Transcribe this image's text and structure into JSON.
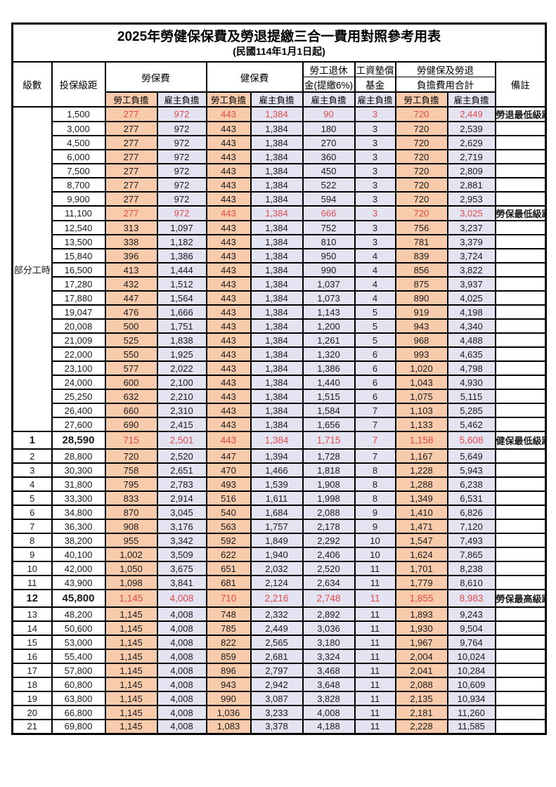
{
  "title": "2025年勞健保保費及勞退提繳三合一費用對照參考用表",
  "subtitle": "(民國114年1月1日起)",
  "header": {
    "level": "級數",
    "bracket": "投保級距",
    "labor_insurance": "勞保費",
    "health_insurance": "健保費",
    "pension_line1": "勞工退休",
    "pension_line2": "金(提繳6%)",
    "wage_fund_line1": "工資墊償",
    "wage_fund_line2": "基金",
    "total_line1": "勞健保及勞退",
    "total_line2": "負擔費用合計",
    "remark": "備註",
    "employee_share": "勞工負擔",
    "employer_share": "雇主負擔"
  },
  "part_time_label": "部分工時",
  "colors": {
    "employee_bg": "#f8cbad",
    "employer_bg": "#e3e3f2",
    "highlight_red": "#e04a4a",
    "border": "#000000"
  },
  "value_columns": [
    "labor-employee",
    "labor-employer",
    "health-employee",
    "health-employer",
    "pension-employer",
    "wagefund-employer",
    "total-employee",
    "total-employer"
  ],
  "rows": [
    {
      "lv": "",
      "br": "1,500",
      "v": [
        "277",
        "972",
        "443",
        "1,384",
        "90",
        "3",
        "720",
        "2,449"
      ],
      "rm": "勞退最低級距",
      "red": true,
      "bold": false,
      "pt": true
    },
    {
      "lv": "",
      "br": "3,000",
      "v": [
        "277",
        "972",
        "443",
        "1,384",
        "180",
        "3",
        "720",
        "2,539"
      ],
      "rm": "",
      "red": false,
      "bold": false,
      "pt": true
    },
    {
      "lv": "",
      "br": "4,500",
      "v": [
        "277",
        "972",
        "443",
        "1,384",
        "270",
        "3",
        "720",
        "2,629"
      ],
      "rm": "",
      "red": false,
      "bold": false,
      "pt": true
    },
    {
      "lv": "",
      "br": "6,000",
      "v": [
        "277",
        "972",
        "443",
        "1,384",
        "360",
        "3",
        "720",
        "2,719"
      ],
      "rm": "",
      "red": false,
      "bold": false,
      "pt": true
    },
    {
      "lv": "",
      "br": "7,500",
      "v": [
        "277",
        "972",
        "443",
        "1,384",
        "450",
        "3",
        "720",
        "2,809"
      ],
      "rm": "",
      "red": false,
      "bold": false,
      "pt": true
    },
    {
      "lv": "",
      "br": "8,700",
      "v": [
        "277",
        "972",
        "443",
        "1,384",
        "522",
        "3",
        "720",
        "2,881"
      ],
      "rm": "",
      "red": false,
      "bold": false,
      "pt": true
    },
    {
      "lv": "",
      "br": "9,900",
      "v": [
        "277",
        "972",
        "443",
        "1,384",
        "594",
        "3",
        "720",
        "2,953"
      ],
      "rm": "",
      "red": false,
      "bold": false,
      "pt": true
    },
    {
      "lv": "",
      "br": "11,100",
      "v": [
        "277",
        "972",
        "443",
        "1,384",
        "666",
        "3",
        "720",
        "3,025"
      ],
      "rm": "勞保最低級距",
      "red": true,
      "bold": false,
      "pt": true
    },
    {
      "lv": "",
      "br": "12,540",
      "v": [
        "313",
        "1,097",
        "443",
        "1,384",
        "752",
        "3",
        "756",
        "3,237"
      ],
      "rm": "",
      "red": false,
      "bold": false,
      "pt": true
    },
    {
      "lv": "",
      "br": "13,500",
      "v": [
        "338",
        "1,182",
        "443",
        "1,384",
        "810",
        "3",
        "781",
        "3,379"
      ],
      "rm": "",
      "red": false,
      "bold": false,
      "pt": true
    },
    {
      "lv": "",
      "br": "15,840",
      "v": [
        "396",
        "1,386",
        "443",
        "1,384",
        "950",
        "4",
        "839",
        "3,724"
      ],
      "rm": "",
      "red": false,
      "bold": false,
      "pt": true
    },
    {
      "lv": "",
      "br": "16,500",
      "v": [
        "413",
        "1,444",
        "443",
        "1,384",
        "990",
        "4",
        "856",
        "3,822"
      ],
      "rm": "",
      "red": false,
      "bold": false,
      "pt": true
    },
    {
      "lv": "",
      "br": "17,280",
      "v": [
        "432",
        "1,512",
        "443",
        "1,384",
        "1,037",
        "4",
        "875",
        "3,937"
      ],
      "rm": "",
      "red": false,
      "bold": false,
      "pt": true
    },
    {
      "lv": "",
      "br": "17,880",
      "v": [
        "447",
        "1,564",
        "443",
        "1,384",
        "1,073",
        "4",
        "890",
        "4,025"
      ],
      "rm": "",
      "red": false,
      "bold": false,
      "pt": true
    },
    {
      "lv": "",
      "br": "19,047",
      "v": [
        "476",
        "1,666",
        "443",
        "1,384",
        "1,143",
        "5",
        "919",
        "4,198"
      ],
      "rm": "",
      "red": false,
      "bold": false,
      "pt": true
    },
    {
      "lv": "",
      "br": "20,008",
      "v": [
        "500",
        "1,751",
        "443",
        "1,384",
        "1,200",
        "5",
        "943",
        "4,340"
      ],
      "rm": "",
      "red": false,
      "bold": false,
      "pt": true
    },
    {
      "lv": "",
      "br": "21,009",
      "v": [
        "525",
        "1,838",
        "443",
        "1,384",
        "1,261",
        "5",
        "968",
        "4,488"
      ],
      "rm": "",
      "red": false,
      "bold": false,
      "pt": true
    },
    {
      "lv": "",
      "br": "22,000",
      "v": [
        "550",
        "1,925",
        "443",
        "1,384",
        "1,320",
        "6",
        "993",
        "4,635"
      ],
      "rm": "",
      "red": false,
      "bold": false,
      "pt": true
    },
    {
      "lv": "",
      "br": "23,100",
      "v": [
        "577",
        "2,022",
        "443",
        "1,384",
        "1,386",
        "6",
        "1,020",
        "4,798"
      ],
      "rm": "",
      "red": false,
      "bold": false,
      "pt": true
    },
    {
      "lv": "",
      "br": "24,000",
      "v": [
        "600",
        "2,100",
        "443",
        "1,384",
        "1,440",
        "6",
        "1,043",
        "4,930"
      ],
      "rm": "",
      "red": false,
      "bold": false,
      "pt": true
    },
    {
      "lv": "",
      "br": "25,250",
      "v": [
        "632",
        "2,210",
        "443",
        "1,384",
        "1,515",
        "6",
        "1,075",
        "5,115"
      ],
      "rm": "",
      "red": false,
      "bold": false,
      "pt": true
    },
    {
      "lv": "",
      "br": "26,400",
      "v": [
        "660",
        "2,310",
        "443",
        "1,384",
        "1,584",
        "7",
        "1,103",
        "5,285"
      ],
      "rm": "",
      "red": false,
      "bold": false,
      "pt": true
    },
    {
      "lv": "",
      "br": "27,600",
      "v": [
        "690",
        "2,415",
        "443",
        "1,384",
        "1,656",
        "7",
        "1,133",
        "5,462"
      ],
      "rm": "",
      "red": false,
      "bold": false,
      "pt": true
    },
    {
      "lv": "1",
      "br": "28,590",
      "v": [
        "715",
        "2,501",
        "443",
        "1,384",
        "1,715",
        "7",
        "1,158",
        "5,608"
      ],
      "rm": "健保最低級距",
      "red": true,
      "bold": true,
      "pt": false
    },
    {
      "lv": "2",
      "br": "28,800",
      "v": [
        "720",
        "2,520",
        "447",
        "1,394",
        "1,728",
        "7",
        "1,167",
        "5,649"
      ],
      "rm": "",
      "red": false,
      "bold": false,
      "pt": false
    },
    {
      "lv": "3",
      "br": "30,300",
      "v": [
        "758",
        "2,651",
        "470",
        "1,466",
        "1,818",
        "8",
        "1,228",
        "5,943"
      ],
      "rm": "",
      "red": false,
      "bold": false,
      "pt": false
    },
    {
      "lv": "4",
      "br": "31,800",
      "v": [
        "795",
        "2,783",
        "493",
        "1,539",
        "1,908",
        "8",
        "1,288",
        "6,238"
      ],
      "rm": "",
      "red": false,
      "bold": false,
      "pt": false
    },
    {
      "lv": "5",
      "br": "33,300",
      "v": [
        "833",
        "2,914",
        "516",
        "1,611",
        "1,998",
        "8",
        "1,349",
        "6,531"
      ],
      "rm": "",
      "red": false,
      "bold": false,
      "pt": false
    },
    {
      "lv": "6",
      "br": "34,800",
      "v": [
        "870",
        "3,045",
        "540",
        "1,684",
        "2,088",
        "9",
        "1,410",
        "6,826"
      ],
      "rm": "",
      "red": false,
      "bold": false,
      "pt": false
    },
    {
      "lv": "7",
      "br": "36,300",
      "v": [
        "908",
        "3,176",
        "563",
        "1,757",
        "2,178",
        "9",
        "1,471",
        "7,120"
      ],
      "rm": "",
      "red": false,
      "bold": false,
      "pt": false
    },
    {
      "lv": "8",
      "br": "38,200",
      "v": [
        "955",
        "3,342",
        "592",
        "1,849",
        "2,292",
        "10",
        "1,547",
        "7,493"
      ],
      "rm": "",
      "red": false,
      "bold": false,
      "pt": false
    },
    {
      "lv": "9",
      "br": "40,100",
      "v": [
        "1,002",
        "3,509",
        "622",
        "1,940",
        "2,406",
        "10",
        "1,624",
        "7,865"
      ],
      "rm": "",
      "red": false,
      "bold": false,
      "pt": false
    },
    {
      "lv": "10",
      "br": "42,000",
      "v": [
        "1,050",
        "3,675",
        "651",
        "2,032",
        "2,520",
        "11",
        "1,701",
        "8,238"
      ],
      "rm": "",
      "red": false,
      "bold": false,
      "pt": false
    },
    {
      "lv": "11",
      "br": "43,900",
      "v": [
        "1,098",
        "3,841",
        "681",
        "2,124",
        "2,634",
        "11",
        "1,779",
        "8,610"
      ],
      "rm": "",
      "red": false,
      "bold": false,
      "pt": false
    },
    {
      "lv": "12",
      "br": "45,800",
      "v": [
        "1,145",
        "4,008",
        "710",
        "2,216",
        "2,748",
        "11",
        "1,855",
        "8,983"
      ],
      "rm": "勞保最高級距",
      "red": true,
      "bold": true,
      "pt": false
    },
    {
      "lv": "13",
      "br": "48,200",
      "v": [
        "1,145",
        "4,008",
        "748",
        "2,332",
        "2,892",
        "11",
        "1,893",
        "9,243"
      ],
      "rm": "",
      "red": false,
      "bold": false,
      "pt": false
    },
    {
      "lv": "14",
      "br": "50,600",
      "v": [
        "1,145",
        "4,008",
        "785",
        "2,449",
        "3,036",
        "11",
        "1,930",
        "9,504"
      ],
      "rm": "",
      "red": false,
      "bold": false,
      "pt": false
    },
    {
      "lv": "15",
      "br": "53,000",
      "v": [
        "1,145",
        "4,008",
        "822",
        "2,565",
        "3,180",
        "11",
        "1,967",
        "9,764"
      ],
      "rm": "",
      "red": false,
      "bold": false,
      "pt": false
    },
    {
      "lv": "16",
      "br": "55,400",
      "v": [
        "1,145",
        "4,008",
        "859",
        "2,681",
        "3,324",
        "11",
        "2,004",
        "10,024"
      ],
      "rm": "",
      "red": false,
      "bold": false,
      "pt": false
    },
    {
      "lv": "17",
      "br": "57,800",
      "v": [
        "1,145",
        "4,008",
        "896",
        "2,797",
        "3,468",
        "11",
        "2,041",
        "10,284"
      ],
      "rm": "",
      "red": false,
      "bold": false,
      "pt": false
    },
    {
      "lv": "18",
      "br": "60,800",
      "v": [
        "1,145",
        "4,008",
        "943",
        "2,942",
        "3,648",
        "11",
        "2,088",
        "10,609"
      ],
      "rm": "",
      "red": false,
      "bold": false,
      "pt": false
    },
    {
      "lv": "19",
      "br": "63,800",
      "v": [
        "1,145",
        "4,008",
        "990",
        "3,087",
        "3,828",
        "11",
        "2,135",
        "10,934"
      ],
      "rm": "",
      "red": false,
      "bold": false,
      "pt": false
    },
    {
      "lv": "20",
      "br": "66,800",
      "v": [
        "1,145",
        "4,008",
        "1,036",
        "3,233",
        "4,008",
        "11",
        "2,181",
        "11,260"
      ],
      "rm": "",
      "red": false,
      "bold": false,
      "pt": false
    },
    {
      "lv": "21",
      "br": "69,800",
      "v": [
        "1,145",
        "4,008",
        "1,083",
        "3,378",
        "4,188",
        "11",
        "2,228",
        "11,585"
      ],
      "rm": "",
      "red": false,
      "bold": false,
      "pt": false
    }
  ]
}
